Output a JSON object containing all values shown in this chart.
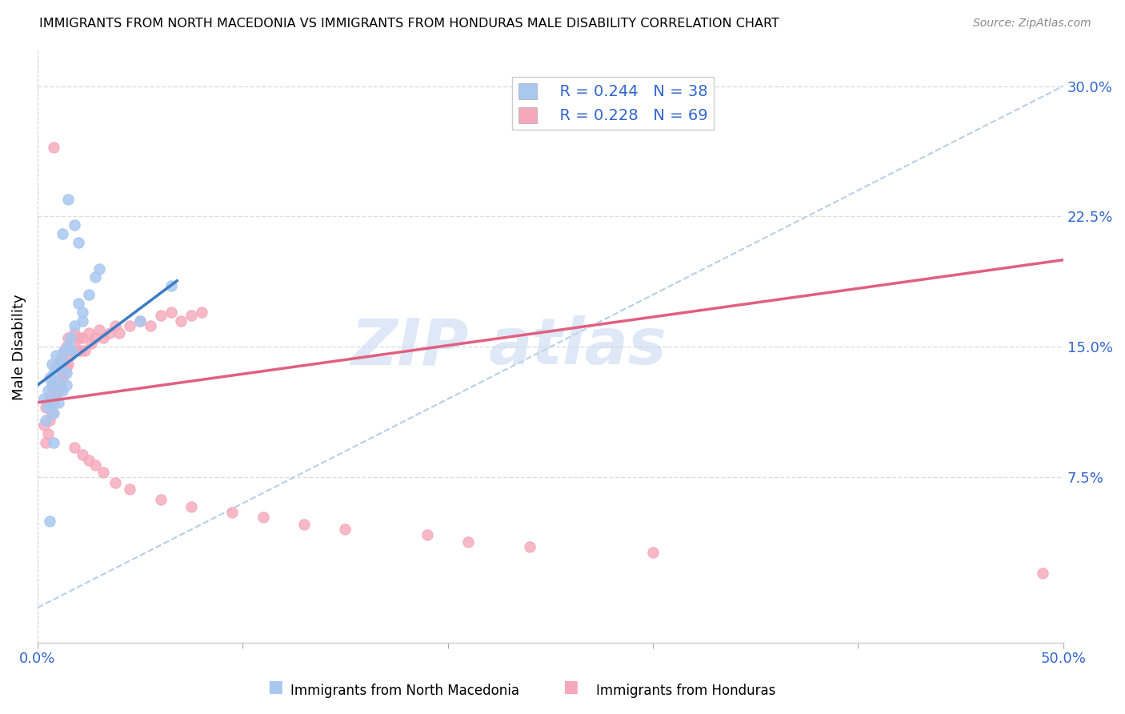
{
  "title": "IMMIGRANTS FROM NORTH MACEDONIA VS IMMIGRANTS FROM HONDURAS MALE DISABILITY CORRELATION CHART",
  "source": "Source: ZipAtlas.com",
  "ylabel": "Male Disability",
  "xlim": [
    0.0,
    0.5
  ],
  "ylim": [
    -0.02,
    0.32
  ],
  "y_ticks_right": [
    0.075,
    0.15,
    0.225,
    0.3
  ],
  "y_tick_labels_right": [
    "7.5%",
    "15.0%",
    "22.5%",
    "30.0%"
  ],
  "macedonia_color": "#a8c8f0",
  "honduras_color": "#f5a8bb",
  "macedonia_line_color": "#3a7cc4",
  "honduras_line_color": "#e06080",
  "dashed_line_color": "#b8cee8",
  "watermark_color": "#c8daf0",
  "legend_text_color": "#3366cc",
  "legend_r1": "R = 0.244",
  "legend_n1": "N = 38",
  "legend_r2": "R = 0.228",
  "legend_n2": "N = 69",
  "macedonia_x": [
    0.003,
    0.004,
    0.005,
    0.005,
    0.006,
    0.006,
    0.007,
    0.007,
    0.008,
    0.008,
    0.009,
    0.009,
    0.01,
    0.01,
    0.011,
    0.012,
    0.012,
    0.013,
    0.014,
    0.014,
    0.015,
    0.016,
    0.017,
    0.018,
    0.02,
    0.022,
    0.022,
    0.025,
    0.028,
    0.03,
    0.012,
    0.015,
    0.018,
    0.02,
    0.05,
    0.065,
    0.008,
    0.006
  ],
  "macedonia_y": [
    0.12,
    0.108,
    0.125,
    0.115,
    0.132,
    0.118,
    0.128,
    0.14,
    0.112,
    0.135,
    0.122,
    0.145,
    0.13,
    0.118,
    0.138,
    0.142,
    0.125,
    0.148,
    0.135,
    0.128,
    0.15,
    0.155,
    0.148,
    0.162,
    0.175,
    0.17,
    0.165,
    0.18,
    0.19,
    0.195,
    0.215,
    0.235,
    0.22,
    0.21,
    0.165,
    0.185,
    0.095,
    0.05
  ],
  "honduras_x": [
    0.003,
    0.004,
    0.004,
    0.005,
    0.005,
    0.006,
    0.006,
    0.007,
    0.007,
    0.008,
    0.008,
    0.009,
    0.009,
    0.01,
    0.01,
    0.011,
    0.011,
    0.012,
    0.012,
    0.013,
    0.013,
    0.014,
    0.014,
    0.015,
    0.015,
    0.016,
    0.017,
    0.018,
    0.018,
    0.019,
    0.02,
    0.021,
    0.022,
    0.023,
    0.025,
    0.026,
    0.028,
    0.03,
    0.032,
    0.035,
    0.038,
    0.04,
    0.045,
    0.05,
    0.055,
    0.06,
    0.065,
    0.07,
    0.075,
    0.08,
    0.018,
    0.022,
    0.025,
    0.028,
    0.032,
    0.038,
    0.045,
    0.06,
    0.075,
    0.095,
    0.11,
    0.13,
    0.15,
    0.19,
    0.21,
    0.24,
    0.3,
    0.008,
    0.49
  ],
  "honduras_y": [
    0.105,
    0.095,
    0.115,
    0.1,
    0.118,
    0.108,
    0.122,
    0.112,
    0.128,
    0.118,
    0.13,
    0.122,
    0.138,
    0.125,
    0.14,
    0.128,
    0.142,
    0.132,
    0.145,
    0.135,
    0.148,
    0.138,
    0.15,
    0.14,
    0.155,
    0.145,
    0.148,
    0.152,
    0.158,
    0.148,
    0.155,
    0.148,
    0.155,
    0.148,
    0.158,
    0.152,
    0.155,
    0.16,
    0.155,
    0.158,
    0.162,
    0.158,
    0.162,
    0.165,
    0.162,
    0.168,
    0.17,
    0.165,
    0.168,
    0.17,
    0.092,
    0.088,
    0.085,
    0.082,
    0.078,
    0.072,
    0.068,
    0.062,
    0.058,
    0.055,
    0.052,
    0.048,
    0.045,
    0.042,
    0.038,
    0.035,
    0.032,
    0.265,
    0.02
  ],
  "mac_line_x": [
    0.0,
    0.068
  ],
  "mac_line_y": [
    0.128,
    0.188
  ],
  "hon_line_x": [
    0.0,
    0.5
  ],
  "hon_line_y": [
    0.118,
    0.2
  ],
  "dash_line_x": [
    0.0,
    0.5
  ],
  "dash_line_y": [
    0.0,
    0.3
  ]
}
